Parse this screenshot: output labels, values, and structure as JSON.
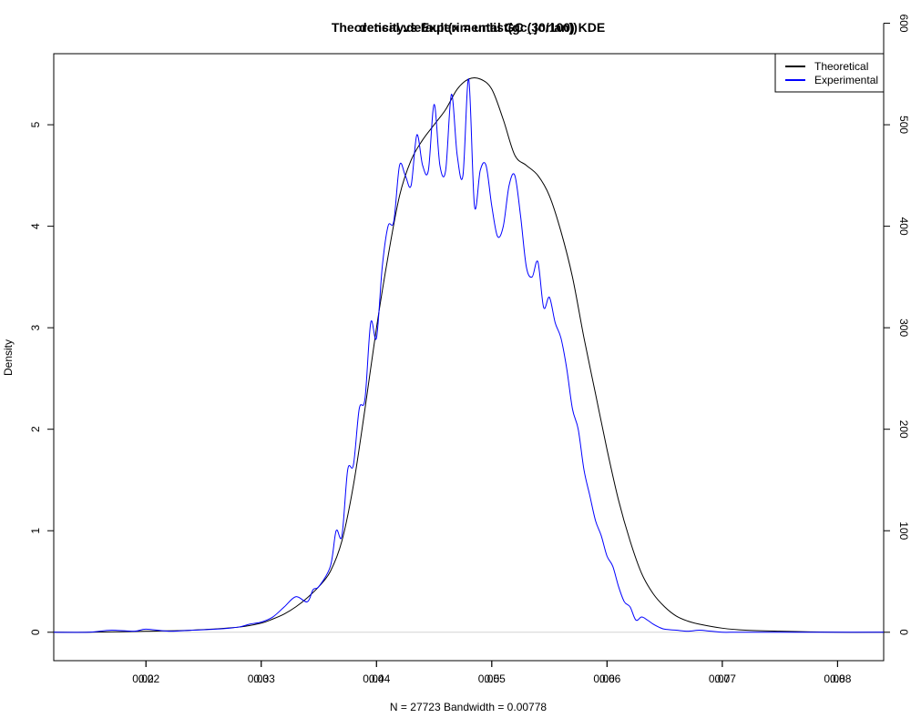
{
  "chart_data": {
    "type": "line",
    "titles": [
      "Theoretical vs Experimental GC (30/100) KDE",
      "density.default(x = unlist(gc_jorian))"
    ],
    "xlabel": "N = 27723   Bandwidth = 0.00778",
    "ylabel": "Density",
    "legend": {
      "position": "top-right",
      "entries": [
        "Theoretical",
        "Experimental"
      ]
    },
    "colors": {
      "theoretical": "#000000",
      "experimental": "#0000ff",
      "zero_line": "#d3d3d3"
    },
    "axes": {
      "bottom_a": {
        "range": [
          0.12,
          0.84
        ],
        "ticks": [
          0.2,
          0.3,
          0.4,
          0.5,
          0.6,
          0.7,
          0.8
        ],
        "labels": [
          "0.2",
          "0.3",
          "0.4",
          "0.5",
          "0.6",
          "0.7",
          "0.8"
        ]
      },
      "bottom_b": {
        "range": [
          0.0012,
          0.0084
        ],
        "ticks": [
          0.002,
          0.003,
          0.004,
          0.005,
          0.006,
          0.007,
          0.008
        ],
        "labels": [
          "0.002",
          "0.003",
          "0.004",
          "0.005",
          "0.006",
          "0.007",
          "0.008"
        ]
      },
      "left": {
        "range": [
          -0.28,
          5.7
        ],
        "ticks": [
          0,
          1,
          2,
          3,
          4,
          5
        ],
        "labels": [
          "0",
          "1",
          "2",
          "3",
          "4",
          "5"
        ]
      },
      "right": {
        "range": [
          -28,
          570
        ],
        "ticks": [
          0,
          100,
          200,
          300,
          400,
          500,
          600
        ],
        "labels": [
          "0",
          "100",
          "200",
          "300",
          "400",
          "500",
          "600"
        ]
      }
    },
    "series": [
      {
        "name": "Theoretical",
        "x": [
          0.12,
          0.15,
          0.2,
          0.24,
          0.28,
          0.3,
          0.31,
          0.32,
          0.33,
          0.34,
          0.35,
          0.36,
          0.37,
          0.38,
          0.39,
          0.4,
          0.41,
          0.42,
          0.43,
          0.44,
          0.45,
          0.46,
          0.47,
          0.48,
          0.49,
          0.5,
          0.51,
          0.52,
          0.53,
          0.54,
          0.55,
          0.56,
          0.57,
          0.58,
          0.59,
          0.6,
          0.61,
          0.62,
          0.63,
          0.64,
          0.65,
          0.66,
          0.67,
          0.68,
          0.7,
          0.72,
          0.75,
          0.8,
          0.84
        ],
        "y": [
          0,
          0,
          0.01,
          0.02,
          0.05,
          0.09,
          0.13,
          0.18,
          0.25,
          0.34,
          0.45,
          0.6,
          0.9,
          1.45,
          2.2,
          3.0,
          3.7,
          4.3,
          4.65,
          4.85,
          5.0,
          5.15,
          5.35,
          5.45,
          5.45,
          5.35,
          5.05,
          4.7,
          4.6,
          4.5,
          4.3,
          3.95,
          3.5,
          2.9,
          2.35,
          1.8,
          1.3,
          0.9,
          0.58,
          0.38,
          0.25,
          0.16,
          0.11,
          0.08,
          0.04,
          0.02,
          0.01,
          0,
          0
        ]
      },
      {
        "name": "Experimental",
        "x": [
          0.12,
          0.15,
          0.17,
          0.19,
          0.2,
          0.22,
          0.24,
          0.26,
          0.28,
          0.29,
          0.3,
          0.31,
          0.32,
          0.33,
          0.34,
          0.345,
          0.35,
          0.36,
          0.365,
          0.37,
          0.375,
          0.38,
          0.385,
          0.39,
          0.395,
          0.4,
          0.405,
          0.41,
          0.415,
          0.42,
          0.425,
          0.43,
          0.435,
          0.44,
          0.445,
          0.45,
          0.455,
          0.46,
          0.465,
          0.47,
          0.475,
          0.48,
          0.485,
          0.49,
          0.495,
          0.5,
          0.505,
          0.51,
          0.515,
          0.52,
          0.525,
          0.53,
          0.535,
          0.54,
          0.545,
          0.55,
          0.555,
          0.56,
          0.565,
          0.57,
          0.575,
          0.58,
          0.585,
          0.59,
          0.595,
          0.6,
          0.605,
          0.61,
          0.615,
          0.62,
          0.625,
          0.63,
          0.635,
          0.64,
          0.645,
          0.65,
          0.66,
          0.67,
          0.68,
          0.69,
          0.7,
          0.71,
          0.72,
          0.74,
          0.76,
          0.8,
          0.84
        ],
        "y": [
          0,
          0,
          0.02,
          0.01,
          0.03,
          0.01,
          0.02,
          0.03,
          0.05,
          0.08,
          0.1,
          0.15,
          0.25,
          0.35,
          0.3,
          0.42,
          0.45,
          0.65,
          1.0,
          0.95,
          1.6,
          1.65,
          2.2,
          2.3,
          3.05,
          2.9,
          3.6,
          4.0,
          4.05,
          4.6,
          4.5,
          4.4,
          4.9,
          4.6,
          4.55,
          5.2,
          4.6,
          4.55,
          5.3,
          4.7,
          4.5,
          5.45,
          4.2,
          4.55,
          4.6,
          4.2,
          3.9,
          4.0,
          4.4,
          4.5,
          4.1,
          3.6,
          3.5,
          3.65,
          3.2,
          3.3,
          3.05,
          2.9,
          2.6,
          2.2,
          2.0,
          1.6,
          1.35,
          1.1,
          0.95,
          0.75,
          0.65,
          0.45,
          0.3,
          0.25,
          0.12,
          0.15,
          0.12,
          0.08,
          0.05,
          0.03,
          0.02,
          0.01,
          0.02,
          0.01,
          0,
          0,
          0,
          0,
          0,
          0,
          0
        ]
      }
    ]
  }
}
